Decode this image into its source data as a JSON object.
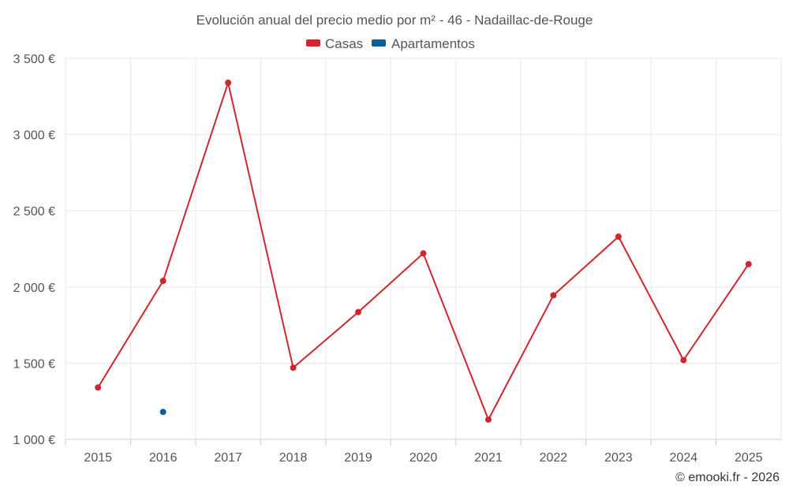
{
  "chart_data": {
    "type": "line",
    "title": "Evolución anual del precio medio por m² - 46 - Nadaillac-de-Rouge",
    "categories": [
      "2015",
      "2016",
      "2017",
      "2018",
      "2019",
      "2020",
      "2021",
      "2022",
      "2023",
      "2024",
      "2025"
    ],
    "y_ticks": [
      "1 000 €",
      "1 500 €",
      "2 000 €",
      "2 500 €",
      "3 000 €",
      "3 500 €"
    ],
    "y_tick_values": [
      1000,
      1500,
      2000,
      2500,
      3000,
      3500
    ],
    "ylim": [
      1000,
      3500
    ],
    "grid": true,
    "legend_position": "top-center",
    "series": [
      {
        "name": "Casas",
        "color": "#d0262d",
        "values": [
          1340,
          2040,
          3340,
          1470,
          1835,
          2220,
          1130,
          1945,
          2330,
          1520,
          2150
        ]
      },
      {
        "name": "Apartamentos",
        "color": "#0a5f96",
        "values": [
          null,
          1180,
          null,
          null,
          null,
          null,
          null,
          null,
          null,
          null,
          null
        ]
      }
    ],
    "credit": "© emooki.fr - 2026"
  }
}
